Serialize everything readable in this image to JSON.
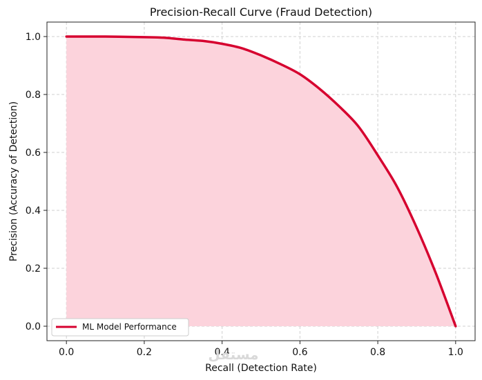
{
  "chart_data": {
    "type": "area",
    "title": "Precision-Recall Curve (Fraud Detection)",
    "xlabel": "Recall (Detection Rate)",
    "ylabel": "Precision (Accuracy of Detection)",
    "xlim": [
      -0.05,
      1.05
    ],
    "ylim": [
      -0.05,
      1.05
    ],
    "xticks": [
      "0.0",
      "0.2",
      "0.4",
      "0.6",
      "0.8",
      "1.0"
    ],
    "yticks": [
      "0.0",
      "0.2",
      "0.4",
      "0.6",
      "0.8",
      "1.0"
    ],
    "grid": true,
    "grid_style": "dashed",
    "legend_position": "lower-left",
    "series": [
      {
        "name": "ML Model Performance",
        "color": "#d6002f",
        "fill_color": "#fcd3dc",
        "x": [
          0.0,
          0.1,
          0.2,
          0.25,
          0.3,
          0.35,
          0.4,
          0.45,
          0.5,
          0.55,
          0.6,
          0.65,
          0.7,
          0.75,
          0.8,
          0.85,
          0.9,
          0.95,
          1.0
        ],
        "y": [
          1.0,
          1.0,
          0.998,
          0.996,
          0.99,
          0.985,
          0.975,
          0.96,
          0.935,
          0.905,
          0.87,
          0.82,
          0.76,
          0.69,
          0.59,
          0.48,
          0.34,
          0.18,
          0.0
        ]
      }
    ]
  },
  "watermark": "مستقل"
}
